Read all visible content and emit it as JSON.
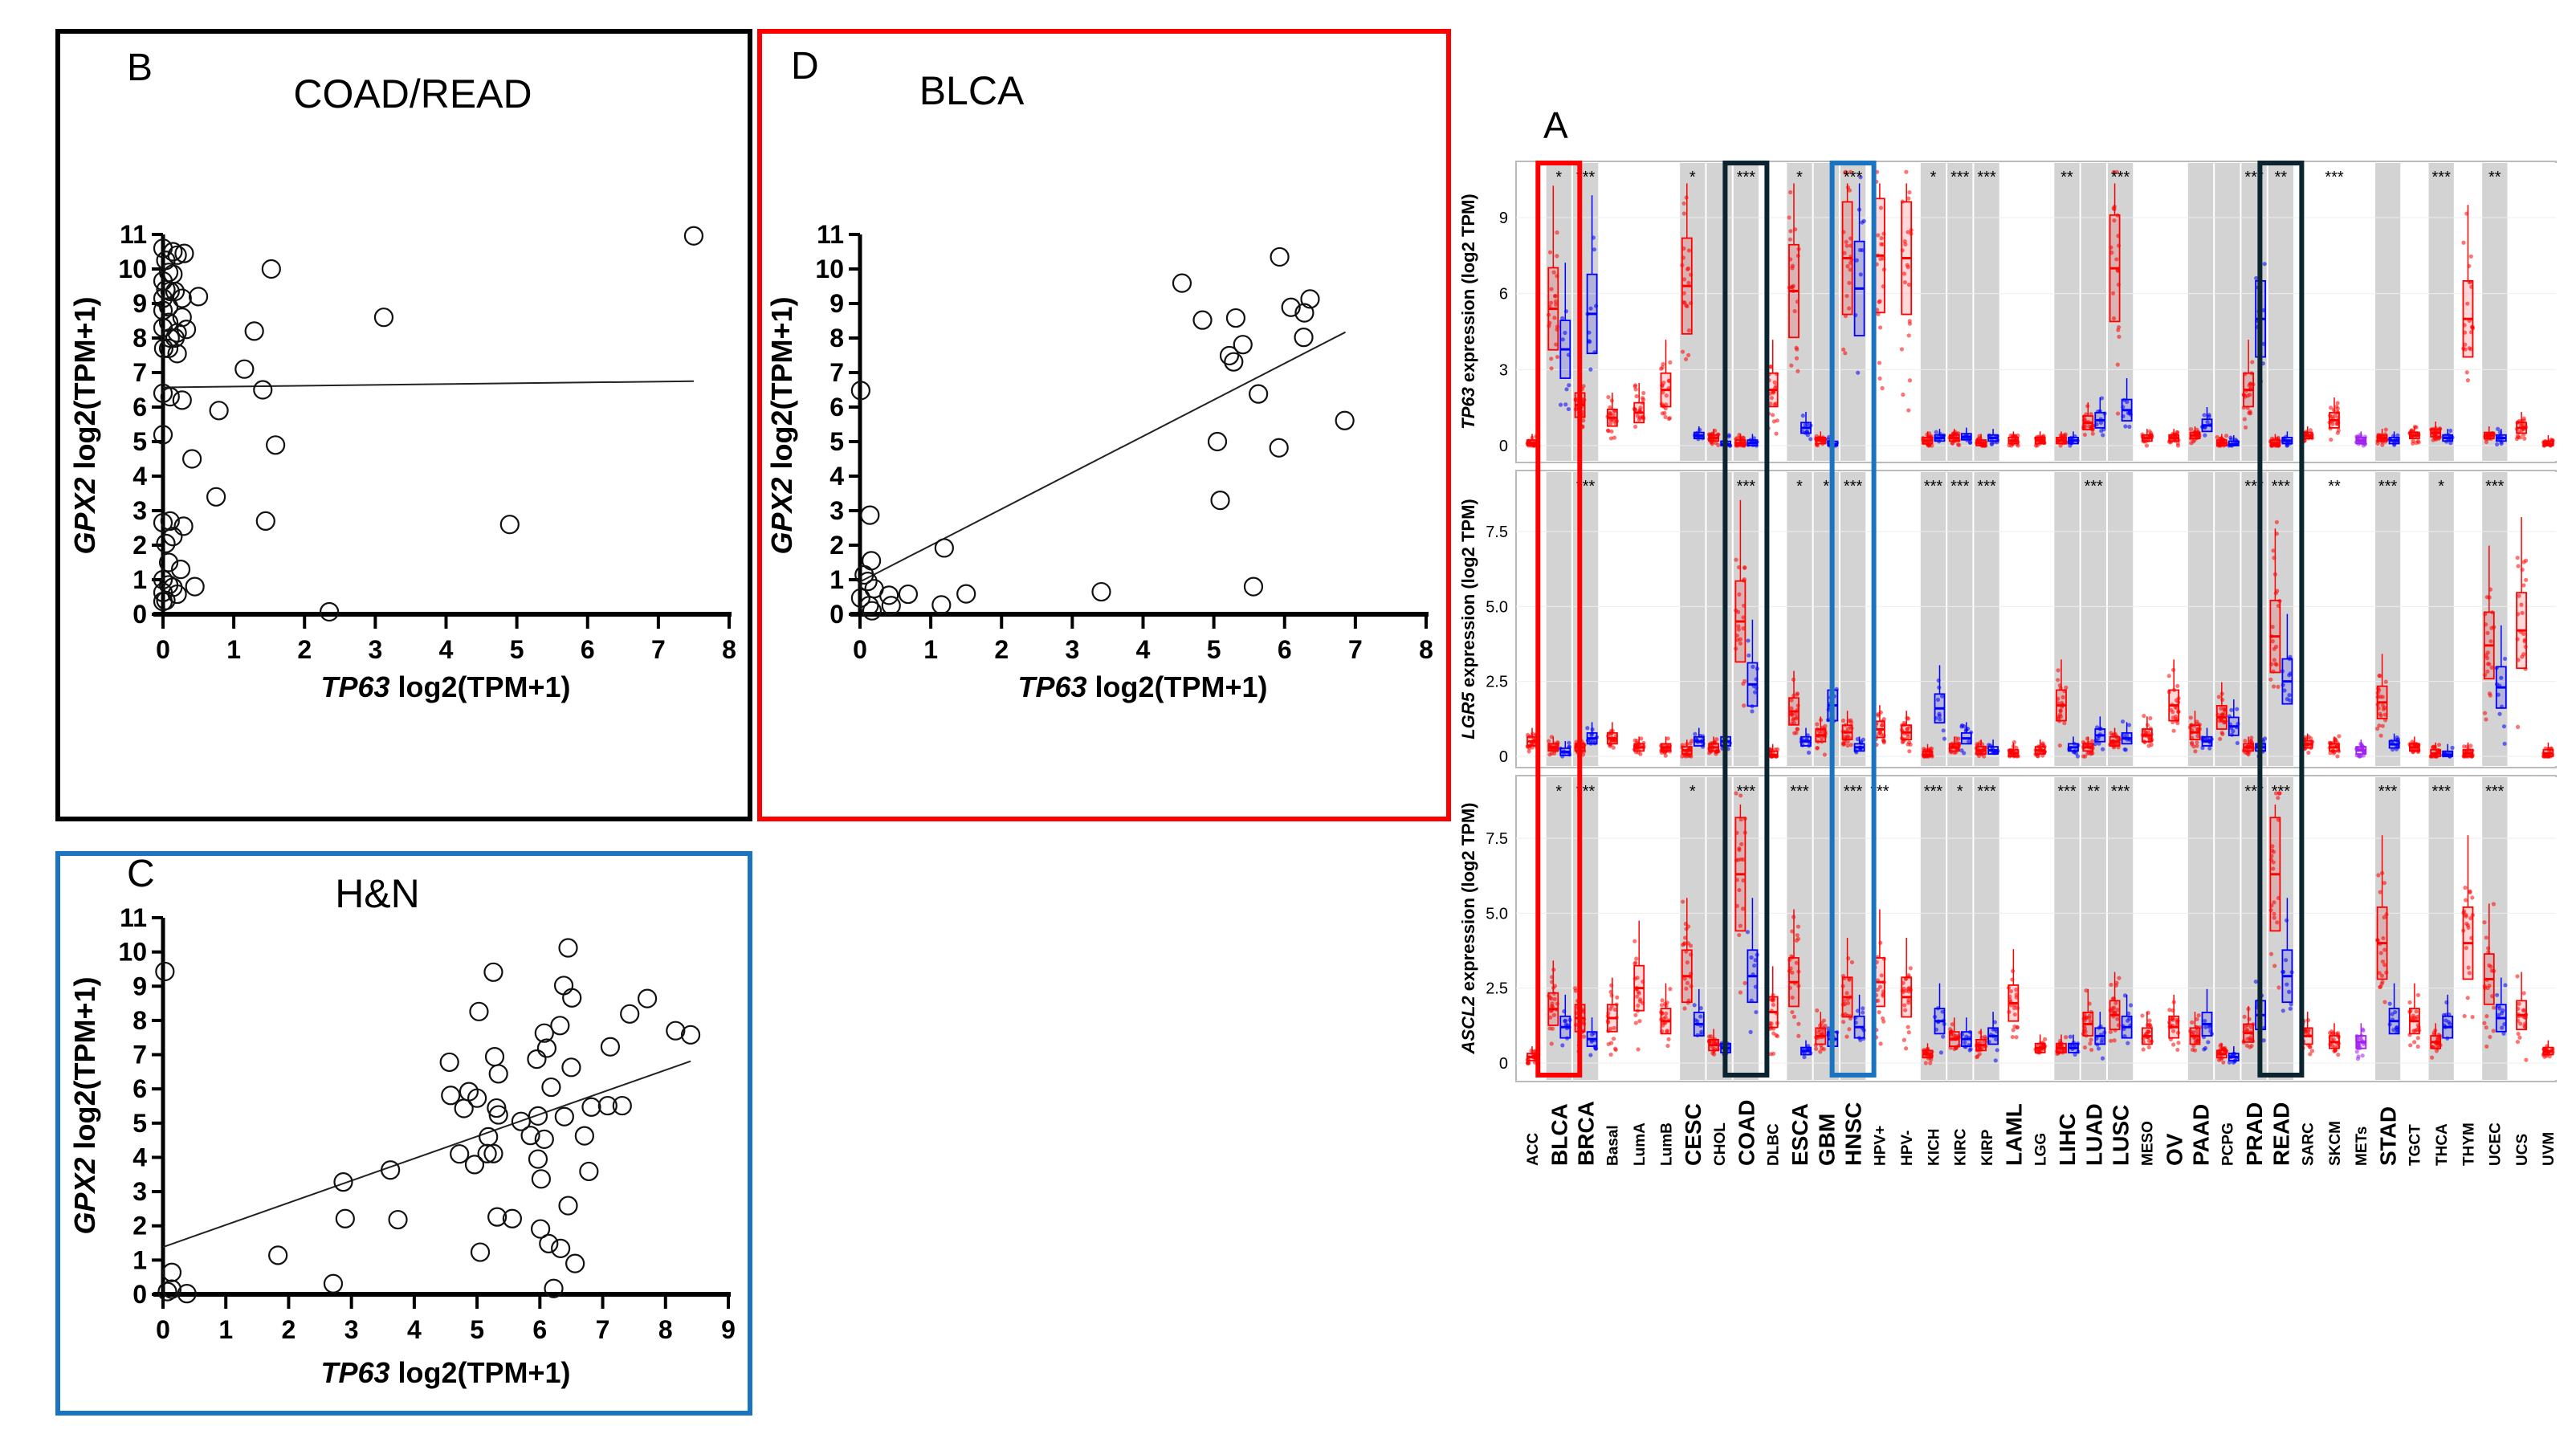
{
  "figure": {
    "colors": {
      "frame_B": "#000000",
      "frame_D": "#ff0000",
      "frame_C": "#1a74c2",
      "tumor": "#ff0000",
      "normal": "#0000ff",
      "metastasis": "#a020f0",
      "band": "#d3d3d3"
    }
  },
  "chart_data": [
    {
      "panel": "B",
      "type": "scatter",
      "title": "COAD/READ",
      "xlabel": {
        "gene": "TP63",
        "unit": "log2(TPM+1)"
      },
      "ylabel": {
        "gene": "GPX2",
        "unit": "log2(TPM+1)"
      },
      "xlim": [
        0,
        8
      ],
      "ylim": [
        0,
        11
      ],
      "xticks": [
        0,
        1,
        2,
        3,
        4,
        5,
        6,
        7,
        8
      ],
      "yticks": [
        0,
        1,
        2,
        3,
        4,
        5,
        6,
        7,
        8,
        9,
        10,
        11
      ],
      "fit_line": [
        [
          0,
          6.57
        ],
        [
          7.5,
          6.75
        ]
      ],
      "points": [
        [
          7.5,
          10.96
        ],
        [
          1.53,
          10.0
        ],
        [
          3.12,
          8.6
        ],
        [
          1.29,
          8.2
        ],
        [
          1.15,
          7.1
        ],
        [
          0.5,
          9.2
        ],
        [
          1.41,
          6.5
        ],
        [
          0.79,
          5.9
        ],
        [
          1.59,
          4.9
        ],
        [
          0.41,
          4.5
        ],
        [
          0.75,
          3.4
        ],
        [
          1.45,
          2.7
        ],
        [
          4.9,
          2.6
        ],
        [
          2.35,
          0.07
        ],
        [
          0.45,
          0.8
        ],
        [
          0.25,
          1.3
        ],
        [
          0.29,
          2.55
        ],
        [
          0,
          5.2
        ],
        [
          0.27,
          6.2
        ],
        [
          0.1,
          6.3
        ],
        [
          0,
          6.4
        ],
        [
          0,
          10.6
        ],
        [
          0.14,
          10.5
        ],
        [
          0.3,
          10.45
        ],
        [
          0.2,
          10.4
        ],
        [
          0.04,
          10.25
        ],
        [
          0.08,
          9.9
        ],
        [
          0.14,
          9.85
        ],
        [
          0,
          9.65
        ],
        [
          0.04,
          9.4
        ],
        [
          0.1,
          9.35
        ],
        [
          0.17,
          9.35
        ],
        [
          0,
          9.15
        ],
        [
          0.27,
          9.15
        ],
        [
          0.08,
          8.9
        ],
        [
          0,
          8.8
        ],
        [
          0.27,
          8.6
        ],
        [
          0.08,
          8.45
        ],
        [
          0,
          8.3
        ],
        [
          0.33,
          8.25
        ],
        [
          0.2,
          8.15
        ],
        [
          0.1,
          8.0
        ],
        [
          0.17,
          8.0
        ],
        [
          0.01,
          7.7
        ],
        [
          0.2,
          7.55
        ],
        [
          0.08,
          7.7
        ],
        [
          0,
          2.65
        ],
        [
          0.1,
          2.7
        ],
        [
          0.14,
          2.25
        ],
        [
          0.04,
          2.05
        ],
        [
          0.08,
          1.5
        ],
        [
          0,
          1.0
        ],
        [
          0.08,
          0.85
        ],
        [
          0.14,
          0.78
        ],
        [
          0,
          0.63
        ],
        [
          0.2,
          0.58
        ],
        [
          0.04,
          0.4
        ],
        [
          0,
          0.37
        ]
      ]
    },
    {
      "panel": "D",
      "type": "scatter",
      "title": "BLCA",
      "xlabel": {
        "gene": "TP63",
        "unit": "log2(TPM+1)"
      },
      "ylabel": {
        "gene": "GPX2",
        "unit": "log2(TPM+1)"
      },
      "xlim": [
        0,
        8
      ],
      "ylim": [
        0,
        11
      ],
      "xticks": [
        0,
        1,
        2,
        3,
        4,
        5,
        6,
        7,
        8
      ],
      "yticks": [
        0,
        1,
        2,
        3,
        4,
        5,
        6,
        7,
        8,
        9,
        10,
        11
      ],
      "fit_line": [
        [
          0.01,
          0.95
        ],
        [
          6.86,
          8.17
        ]
      ],
      "points": [
        [
          5.93,
          10.35
        ],
        [
          4.55,
          9.59
        ],
        [
          4.84,
          8.52
        ],
        [
          5.31,
          8.58
        ],
        [
          6.09,
          8.89
        ],
        [
          6.36,
          9.13
        ],
        [
          6.28,
          8.73
        ],
        [
          6.27,
          8.02
        ],
        [
          5.41,
          7.81
        ],
        [
          5.22,
          7.49
        ],
        [
          5.28,
          7.31
        ],
        [
          5.63,
          6.38
        ],
        [
          6.85,
          5.61
        ],
        [
          5.05,
          5.0
        ],
        [
          5.92,
          4.82
        ],
        [
          5.09,
          3.3
        ],
        [
          5.56,
          0.8
        ],
        [
          3.41,
          0.65
        ],
        [
          1.5,
          0.59
        ],
        [
          1.15,
          0.27
        ],
        [
          1.19,
          1.92
        ],
        [
          0.68,
          0.58
        ],
        [
          0.41,
          0.55
        ],
        [
          0.44,
          0.25
        ],
        [
          0.14,
          2.87
        ],
        [
          0.16,
          1.55
        ],
        [
          0.01,
          6.48
        ],
        [
          0.06,
          1.14
        ],
        [
          0.11,
          0.95
        ],
        [
          0.2,
          0.74
        ],
        [
          0.01,
          0.47
        ],
        [
          0.13,
          0.25
        ],
        [
          0.17,
          0.1
        ]
      ]
    },
    {
      "panel": "C",
      "type": "scatter",
      "title": "H&N",
      "xlabel": {
        "gene": "TP63",
        "unit": "log2(TPM+1)"
      },
      "ylabel": {
        "gene": "GPX2",
        "unit": "log2(TPM+1)"
      },
      "xlim": [
        0,
        9
      ],
      "ylim": [
        0,
        11
      ],
      "xticks": [
        0,
        1,
        2,
        3,
        4,
        5,
        6,
        7,
        8,
        9
      ],
      "yticks": [
        0,
        1,
        2,
        3,
        4,
        5,
        6,
        7,
        8,
        9,
        10,
        11
      ],
      "fit_line": [
        [
          0,
          1.38
        ],
        [
          8.4,
          6.81
        ]
      ],
      "points": [
        [
          0.03,
          9.43
        ],
        [
          6.45,
          10.12
        ],
        [
          5.26,
          9.41
        ],
        [
          6.38,
          9.02
        ],
        [
          6.51,
          8.66
        ],
        [
          7.71,
          8.64
        ],
        [
          5.03,
          8.26
        ],
        [
          7.43,
          8.19
        ],
        [
          6.32,
          7.85
        ],
        [
          6.07,
          7.63
        ],
        [
          8.16,
          7.7
        ],
        [
          8.4,
          7.58
        ],
        [
          7.12,
          7.23
        ],
        [
          6.11,
          7.19
        ],
        [
          5.28,
          6.94
        ],
        [
          5.95,
          6.87
        ],
        [
          4.56,
          6.78
        ],
        [
          6.5,
          6.63
        ],
        [
          5.34,
          6.44
        ],
        [
          6.18,
          6.05
        ],
        [
          4.58,
          5.81
        ],
        [
          4.87,
          5.92
        ],
        [
          5.0,
          5.73
        ],
        [
          4.79,
          5.43
        ],
        [
          5.31,
          5.44
        ],
        [
          5.34,
          5.24
        ],
        [
          5.7,
          5.05
        ],
        [
          5.97,
          5.21
        ],
        [
          6.39,
          5.19
        ],
        [
          6.82,
          5.47
        ],
        [
          7.08,
          5.51
        ],
        [
          7.31,
          5.51
        ],
        [
          5.18,
          4.6
        ],
        [
          5.85,
          4.64
        ],
        [
          6.07,
          4.53
        ],
        [
          6.71,
          4.63
        ],
        [
          4.72,
          4.1
        ],
        [
          5.16,
          4.11
        ],
        [
          5.26,
          4.11
        ],
        [
          4.96,
          3.79
        ],
        [
          5.97,
          3.95
        ],
        [
          6.02,
          3.37
        ],
        [
          6.78,
          3.59
        ],
        [
          3.62,
          3.63
        ],
        [
          2.87,
          3.28
        ],
        [
          2.9,
          2.21
        ],
        [
          3.74,
          2.18
        ],
        [
          5.32,
          2.26
        ],
        [
          5.56,
          2.21
        ],
        [
          6.45,
          2.59
        ],
        [
          6.01,
          1.91
        ],
        [
          6.14,
          1.48
        ],
        [
          6.33,
          1.34
        ],
        [
          5.05,
          1.23
        ],
        [
          6.56,
          0.9
        ],
        [
          1.83,
          1.14
        ],
        [
          2.71,
          0.31
        ],
        [
          6.22,
          0.17
        ],
        [
          0.14,
          0.64
        ],
        [
          0.14,
          0.15
        ],
        [
          0.07,
          0.08
        ],
        [
          0.38,
          0.02
        ]
      ]
    },
    {
      "panel": "A",
      "type": "box",
      "categories": [
        "ACC",
        "BLCA",
        "BRCA",
        "Basal",
        "LumA",
        "LumB",
        "CESC",
        "CHOL",
        "COAD",
        "DLBC",
        "ESCA",
        "GBM",
        "HNSC",
        "HPV+",
        "HPV-",
        "KICH",
        "KIRC",
        "KIRP",
        "LAML",
        "LGG",
        "LIHC",
        "LUAD",
        "LUSC",
        "MESO",
        "OV",
        "PAAD",
        "PCPG",
        "PRAD",
        "READ",
        "SARC",
        "SKCM",
        "METs",
        "STAD",
        "TGCT",
        "THCA",
        "THYM",
        "UCEC",
        "UCS",
        "UVM"
      ],
      "highlighted": [
        {
          "category": "BLCA",
          "color": "#ff0000"
        },
        {
          "category": "COAD",
          "color": "#0b2530"
        },
        {
          "category": "HNSC",
          "color": "#1a74c2"
        },
        {
          "category": "READ",
          "color": "#0b2530"
        }
      ],
      "rows": [
        {
          "gene": "TP63",
          "ylabel_unit": "expression (log2 TPM)",
          "ylim": [
            0,
            11
          ],
          "yticks": [
            "0",
            "3",
            "6",
            "9"
          ],
          "ytick_values": [
            0,
            3,
            6,
            9
          ],
          "tumor_median": [
            0.1,
            5.4,
            1.6,
            1.1,
            1.3,
            2.2,
            6.3,
            0.3,
            0.1,
            2.2,
            6.1,
            0.2,
            7.4,
            7.5,
            7.4,
            0.2,
            0.3,
            0.1,
            0.2,
            0.2,
            0.2,
            0.9,
            7.0,
            0.3,
            0.3,
            0.4,
            0.1,
            2.2,
            0.1,
            0.4,
            1.0,
            0.2,
            0.3,
            0.4,
            0.5,
            5.0,
            0.4,
            0.7,
            0.05
          ],
          "normal_median": [
            null,
            3.8,
            5.2,
            null,
            null,
            null,
            0.4,
            0.05,
            0.1,
            null,
            0.7,
            0.05,
            6.2,
            null,
            null,
            0.3,
            0.35,
            0.3,
            null,
            null,
            0.2,
            1.0,
            1.4,
            null,
            null,
            0.8,
            0.05,
            5.0,
            0.2,
            null,
            null,
            null,
            0.2,
            null,
            0.3,
            null,
            0.3,
            null,
            null
          ],
          "significance": {
            "BLCA": "*",
            "BRCA": "***",
            "CESC": "*",
            "COAD": "***",
            "ESCA": "*",
            "HNSC": "***",
            "KICH": "*",
            "KIRC": "***",
            "KIRP": "***",
            "LIHC": "**",
            "LUSC": "***",
            "PRAD": "***",
            "READ": "**",
            "SKCM": "***",
            "THCA": "***",
            "UCEC": "**"
          }
        },
        {
          "gene": "LGR5",
          "ylabel_unit": "expression (log2 TPM)",
          "ylim": [
            0,
            9
          ],
          "yticks": [
            "0",
            "2.5",
            "5.0",
            "7.5"
          ],
          "ytick_values": [
            0,
            2.5,
            5,
            7.5
          ],
          "tumor_median": [
            0.5,
            0.3,
            0.3,
            0.6,
            0.3,
            0.3,
            0.2,
            0.3,
            4.5,
            0.05,
            1.5,
            0.7,
            0.8,
            0.9,
            0.8,
            0.05,
            0.3,
            0.2,
            0.1,
            0.2,
            1.7,
            0.3,
            0.5,
            0.7,
            1.7,
            0.8,
            1.3,
            0.3,
            4.0,
            0.4,
            0.3,
            0.2,
            1.8,
            0.3,
            0.1,
            0.1,
            3.7,
            4.2,
            0.1
          ],
          "normal_median": [
            null,
            0.15,
            0.6,
            null,
            null,
            null,
            0.5,
            0.5,
            2.4,
            null,
            0.5,
            1.7,
            0.3,
            null,
            null,
            1.6,
            0.6,
            0.2,
            null,
            null,
            0.3,
            0.7,
            0.6,
            null,
            null,
            0.5,
            1.0,
            0.3,
            2.5,
            null,
            null,
            null,
            0.4,
            null,
            0.05,
            null,
            2.3,
            null,
            null
          ],
          "significance": {
            "BRCA": "***",
            "COAD": "***",
            "ESCA": "*",
            "GBM": "*",
            "HNSC": "***",
            "KICH": "***",
            "KIRC": "***",
            "KIRP": "***",
            "LUAD": "***",
            "PRAD": "***",
            "READ": "***",
            "SKCM": "**",
            "STAD": "***",
            "THCA": "*",
            "UCEC": "***"
          }
        },
        {
          "gene": "ASCL2",
          "ylabel_unit": "expression (log2 TPM)",
          "ylim": [
            0,
            9
          ],
          "yticks": [
            "0",
            "2.5",
            "5.0",
            "7.5"
          ],
          "ytick_values": [
            0,
            2.5,
            5,
            7.5
          ],
          "tumor_median": [
            0.2,
            1.8,
            1.5,
            1.5,
            2.5,
            1.4,
            2.9,
            0.6,
            6.3,
            1.7,
            2.7,
            0.9,
            2.2,
            2.7,
            2.2,
            0.3,
            0.8,
            0.6,
            2.0,
            0.5,
            0.5,
            1.3,
            1.6,
            0.9,
            1.2,
            0.9,
            0.3,
            1.0,
            6.3,
            0.9,
            0.7,
            0.7,
            4.0,
            1.4,
            0.7,
            4.0,
            2.8,
            1.6,
            0.4
          ],
          "normal_median": [
            null,
            1.2,
            0.8,
            null,
            null,
            null,
            1.3,
            0.5,
            2.9,
            null,
            0.4,
            0.8,
            1.2,
            null,
            null,
            1.4,
            0.8,
            0.9,
            null,
            null,
            0.5,
            0.9,
            1.2,
            null,
            null,
            1.3,
            0.2,
            1.6,
            2.9,
            null,
            null,
            null,
            1.4,
            null,
            1.2,
            null,
            1.5,
            null,
            null
          ],
          "significance": {
            "BLCA": "*",
            "BRCA": "***",
            "CESC": "*",
            "COAD": "***",
            "ESCA": "***",
            "HNSC": "***",
            "HPV+": "***",
            "KICH": "***",
            "KIRC": "*",
            "KIRP": "***",
            "LIHC": "***",
            "LUAD": "**",
            "LUSC": "***",
            "PRAD": "***",
            "READ": "***",
            "STAD": "***",
            "THCA": "***",
            "UCEC": "***"
          }
        }
      ]
    }
  ]
}
